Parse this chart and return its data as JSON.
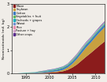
{
  "years": [
    1992,
    1993,
    1994,
    1995,
    1996,
    1997,
    1998,
    1999,
    2000,
    2001,
    2002,
    2003,
    2004,
    2005,
    2006,
    2007,
    2008,
    2009,
    2010,
    2011,
    2012
  ],
  "series": {
    "Maize": [
      0.0,
      0.0,
      0.0,
      0.0,
      0.01,
      0.01,
      0.01,
      0.02,
      0.03,
      0.04,
      0.06,
      0.09,
      0.15,
      0.25,
      0.38,
      0.55,
      0.72,
      0.88,
      1.05,
      1.22,
      1.38
    ],
    "Soybean": [
      0.0,
      0.0,
      0.0,
      0.0,
      0.0,
      0.0,
      0.01,
      0.01,
      0.02,
      0.03,
      0.04,
      0.06,
      0.1,
      0.16,
      0.24,
      0.32,
      0.4,
      0.45,
      0.52,
      0.57,
      0.62
    ],
    "Cotton": [
      0.0,
      0.0,
      0.0,
      0.01,
      0.01,
      0.02,
      0.03,
      0.04,
      0.05,
      0.06,
      0.07,
      0.08,
      0.09,
      0.1,
      0.11,
      0.12,
      0.12,
      0.12,
      0.12,
      0.12,
      0.12
    ],
    "Vegetables + fruit": [
      0.0,
      0.0,
      0.0,
      0.01,
      0.01,
      0.01,
      0.02,
      0.02,
      0.02,
      0.02,
      0.03,
      0.03,
      0.03,
      0.04,
      0.04,
      0.04,
      0.04,
      0.04,
      0.04,
      0.04,
      0.04
    ],
    "Orchards + grapes": [
      0.0,
      0.0,
      0.01,
      0.01,
      0.01,
      0.01,
      0.01,
      0.01,
      0.02,
      0.02,
      0.02,
      0.02,
      0.02,
      0.02,
      0.02,
      0.02,
      0.02,
      0.02,
      0.02,
      0.02,
      0.02
    ],
    "Wheat": [
      0.0,
      0.0,
      0.0,
      0.0,
      0.0,
      0.0,
      0.0,
      0.01,
      0.01,
      0.01,
      0.01,
      0.01,
      0.01,
      0.01,
      0.01,
      0.02,
      0.02,
      0.02,
      0.02,
      0.02,
      0.02
    ],
    "Rice": [
      0.0,
      0.0,
      0.0,
      0.0,
      0.0,
      0.0,
      0.0,
      0.0,
      0.0,
      0.0,
      0.0,
      0.0,
      0.01,
      0.01,
      0.01,
      0.01,
      0.01,
      0.01,
      0.01,
      0.01,
      0.01
    ],
    "Pasture + hay": [
      0.0,
      0.0,
      0.0,
      0.0,
      0.0,
      0.0,
      0.0,
      0.0,
      0.0,
      0.0,
      0.0,
      0.0,
      0.0,
      0.01,
      0.01,
      0.01,
      0.01,
      0.01,
      0.01,
      0.01,
      0.01
    ],
    "Other crops": [
      0.0,
      0.0,
      0.0,
      0.0,
      0.0,
      0.0,
      0.01,
      0.01,
      0.01,
      0.01,
      0.01,
      0.01,
      0.01,
      0.02,
      0.02,
      0.02,
      0.02,
      0.02,
      0.02,
      0.03,
      0.03
    ]
  },
  "colors": {
    "Maize": "#8B1C1C",
    "Soybean": "#C8A040",
    "Cotton": "#3A7BBF",
    "Vegetables + fruit": "#5CB85C",
    "Orchards + grapes": "#20B0C0",
    "Wheat": "#7090D0",
    "Rice": "#E890B0",
    "Pasture + hay": "#D0A0C8",
    "Other crops": "#5B2D8E"
  },
  "ylabel": "Neonicotinoids (mil. kg)",
  "ylim": [
    0,
    3.0
  ],
  "xlim": [
    1992,
    2012
  ],
  "xticks": [
    1995,
    2000,
    2005,
    2010
  ],
  "yticks": [
    0,
    1,
    2,
    3
  ],
  "bg_color": "#f0ede8"
}
